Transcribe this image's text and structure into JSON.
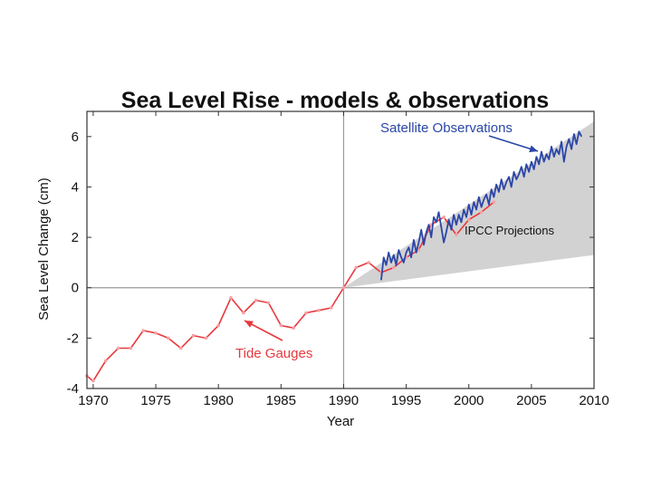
{
  "chart_data": {
    "type": "line",
    "title": "Sea Level Rise - models & observations",
    "xlabel": "Year",
    "ylabel": "Sea Level Change (cm)",
    "xlim": [
      1969.5,
      2010
    ],
    "ylim": [
      -4,
      7
    ],
    "xticks": [
      1970,
      1975,
      1980,
      1985,
      1990,
      1995,
      2000,
      2005,
      2010
    ],
    "yticks": [
      -4,
      -2,
      0,
      2,
      4,
      6
    ],
    "vline": 1990,
    "colors": {
      "tide": "#e8383d",
      "satellite": "#2a46a8",
      "band": "#d3d2d2",
      "axis": "#333333"
    },
    "annotations": {
      "satellite": "Satellite Observations",
      "ipcc": "IPCC Projections",
      "tide": "Tide Gauges"
    },
    "series": [
      {
        "name": "Tide Gauges",
        "color": "#e8383d",
        "x": [
          1969.5,
          1970,
          1971,
          1972,
          1973,
          1974,
          1975,
          1976,
          1977,
          1978,
          1979,
          1980,
          1981,
          1982,
          1983,
          1984,
          1985,
          1986,
          1987,
          1988,
          1989,
          1990,
          1991,
          1992,
          1993,
          1994,
          1995,
          1996,
          1997,
          1998,
          1999,
          2000,
          2001,
          2002
        ],
        "values": [
          -3.5,
          -3.7,
          -2.9,
          -2.4,
          -2.4,
          -1.7,
          -1.8,
          -2.0,
          -2.4,
          -1.9,
          -2.0,
          -1.5,
          -0.4,
          -1.0,
          -0.5,
          -0.6,
          -1.5,
          -1.6,
          -1.0,
          -0.9,
          -0.8,
          0.0,
          0.8,
          1.0,
          0.6,
          0.8,
          1.2,
          1.5,
          2.5,
          2.8,
          2.1,
          2.7,
          3.0,
          3.4
        ]
      },
      {
        "name": "Satellite Observations",
        "color": "#2a46a8",
        "x": [
          1993.0,
          1993.2,
          1993.4,
          1993.6,
          1993.8,
          1994.0,
          1994.2,
          1994.4,
          1994.6,
          1994.8,
          1995.0,
          1995.2,
          1995.4,
          1995.6,
          1995.8,
          1996.0,
          1996.2,
          1996.4,
          1996.6,
          1996.8,
          1997.0,
          1997.2,
          1997.4,
          1997.6,
          1997.8,
          1998.0,
          1998.2,
          1998.4,
          1998.6,
          1998.8,
          1999.0,
          1999.2,
          1999.4,
          1999.6,
          1999.8,
          2000.0,
          2000.2,
          2000.4,
          2000.6,
          2000.8,
          2001.0,
          2001.2,
          2001.4,
          2001.6,
          2001.8,
          2002.0,
          2002.2,
          2002.4,
          2002.6,
          2002.8,
          2003.0,
          2003.2,
          2003.4,
          2003.6,
          2003.8,
          2004.0,
          2004.2,
          2004.4,
          2004.6,
          2004.8,
          2005.0,
          2005.2,
          2005.4,
          2005.6,
          2005.8,
          2006.0,
          2006.2,
          2006.4,
          2006.6,
          2006.8,
          2007.0,
          2007.2,
          2007.4,
          2007.6,
          2007.8,
          2008.0,
          2008.2,
          2008.4,
          2008.6,
          2008.8,
          2009.0
        ],
        "values": [
          0.3,
          1.2,
          0.9,
          1.4,
          1.0,
          1.3,
          0.9,
          1.5,
          1.2,
          1.0,
          1.4,
          1.6,
          1.2,
          1.9,
          1.4,
          1.8,
          2.3,
          1.7,
          2.2,
          2.5,
          2.0,
          2.8,
          2.6,
          3.0,
          2.4,
          1.8,
          2.2,
          2.7,
          2.3,
          2.9,
          2.5,
          2.9,
          2.6,
          3.1,
          2.8,
          3.3,
          2.9,
          3.4,
          3.1,
          3.6,
          3.2,
          3.5,
          3.7,
          3.3,
          3.9,
          3.6,
          4.1,
          3.8,
          4.3,
          3.9,
          4.2,
          4.4,
          4.0,
          4.6,
          4.3,
          4.5,
          4.8,
          4.4,
          4.9,
          4.6,
          5.0,
          4.7,
          5.2,
          4.9,
          5.4,
          5.0,
          5.3,
          5.1,
          5.6,
          5.2,
          5.5,
          5.3,
          5.8,
          5.0,
          5.6,
          5.9,
          5.5,
          6.1,
          5.7,
          6.2,
          6.0
        ]
      }
    ],
    "band": {
      "name": "IPCC Projections",
      "x": [
        1990,
        2010
      ],
      "lower": [
        0.0,
        1.3
      ],
      "upper": [
        0.0,
        6.6
      ]
    }
  }
}
